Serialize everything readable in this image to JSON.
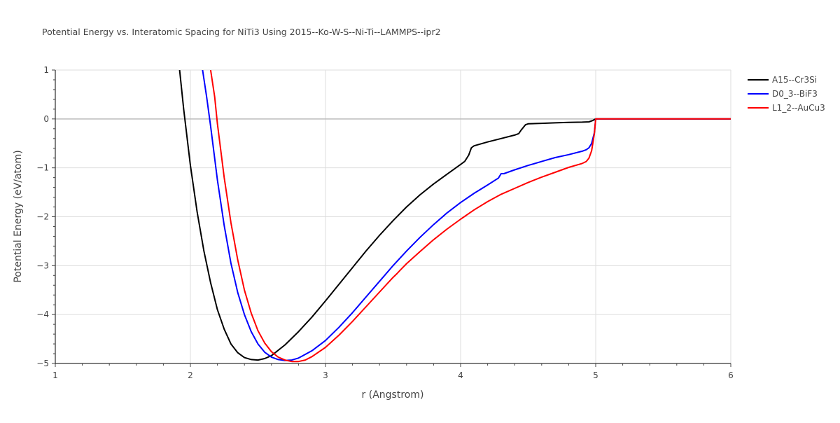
{
  "chart_data": {
    "type": "line",
    "title": "Potential Energy vs. Interatomic Spacing for NiTi3 Using 2015--Ko-W-S--Ni-Ti--LAMMPS--ipr2",
    "xlabel": "r (Angstrom)",
    "ylabel": "Potential Energy (eV/atom)",
    "xlim": [
      1,
      6
    ],
    "ylim": [
      -5,
      1
    ],
    "xticks": [
      1,
      2,
      3,
      4,
      5,
      6
    ],
    "xtick_labels": [
      "1",
      "2",
      "3",
      "4",
      "5",
      "6"
    ],
    "yticks": [
      1,
      0,
      -1,
      -2,
      -3,
      -4,
      -5
    ],
    "ytick_labels": [
      "1",
      "0",
      "−1",
      "−2",
      "−3",
      "−4",
      "−5"
    ],
    "grid": true,
    "legend_position": "top-right",
    "series": [
      {
        "name": "A15--Cr3Si",
        "color": "#000000",
        "x": [
          1.92,
          1.95,
          2.0,
          2.05,
          2.1,
          2.15,
          2.2,
          2.25,
          2.3,
          2.35,
          2.4,
          2.45,
          2.5,
          2.55,
          2.6,
          2.7,
          2.8,
          2.9,
          3.0,
          3.1,
          3.2,
          3.3,
          3.4,
          3.5,
          3.6,
          3.7,
          3.8,
          3.9,
          4.0,
          4.03,
          4.06,
          4.08,
          4.1,
          4.2,
          4.3,
          4.4,
          4.43,
          4.45,
          4.48,
          4.5,
          4.6,
          4.7,
          4.8,
          4.9,
          4.95,
          4.98,
          5.0,
          5.2,
          5.5,
          6.0
        ],
        "y": [
          1.0,
          0.2,
          -0.95,
          -1.9,
          -2.7,
          -3.35,
          -3.9,
          -4.3,
          -4.6,
          -4.78,
          -4.88,
          -4.92,
          -4.93,
          -4.9,
          -4.84,
          -4.62,
          -4.35,
          -4.05,
          -3.72,
          -3.38,
          -3.04,
          -2.7,
          -2.38,
          -2.08,
          -1.8,
          -1.55,
          -1.33,
          -1.13,
          -0.93,
          -0.87,
          -0.74,
          -0.59,
          -0.55,
          -0.47,
          -0.4,
          -0.33,
          -0.3,
          -0.22,
          -0.12,
          -0.1,
          -0.09,
          -0.08,
          -0.07,
          -0.065,
          -0.06,
          -0.03,
          0.0,
          0.0,
          0.0,
          0.0
        ]
      },
      {
        "name": "D0_3--BiF3",
        "color": "#0000ff",
        "x": [
          2.09,
          2.12,
          2.15,
          2.2,
          2.25,
          2.3,
          2.35,
          2.4,
          2.45,
          2.5,
          2.55,
          2.6,
          2.65,
          2.7,
          2.75,
          2.8,
          2.9,
          3.0,
          3.1,
          3.2,
          3.3,
          3.4,
          3.5,
          3.6,
          3.7,
          3.8,
          3.9,
          4.0,
          4.1,
          4.2,
          4.28,
          4.3,
          4.32,
          4.4,
          4.5,
          4.6,
          4.7,
          4.8,
          4.9,
          4.93,
          4.95,
          4.97,
          4.99,
          5.0,
          5.2,
          5.5,
          6.0
        ],
        "y": [
          1.0,
          0.45,
          -0.15,
          -1.25,
          -2.18,
          -2.95,
          -3.55,
          -4.0,
          -4.35,
          -4.6,
          -4.77,
          -4.87,
          -4.92,
          -4.94,
          -4.93,
          -4.89,
          -4.74,
          -4.53,
          -4.26,
          -3.96,
          -3.64,
          -3.32,
          -3.0,
          -2.7,
          -2.42,
          -2.16,
          -1.92,
          -1.71,
          -1.52,
          -1.35,
          -1.21,
          -1.12,
          -1.12,
          -1.04,
          -0.95,
          -0.87,
          -0.79,
          -0.73,
          -0.66,
          -0.63,
          -0.59,
          -0.5,
          -0.28,
          0.0,
          0.0,
          0.0,
          0.0
        ]
      },
      {
        "name": "L1_2--AuCu3",
        "color": "#ff0000",
        "x": [
          2.15,
          2.18,
          2.2,
          2.25,
          2.3,
          2.35,
          2.4,
          2.45,
          2.5,
          2.55,
          2.6,
          2.65,
          2.7,
          2.75,
          2.8,
          2.85,
          2.9,
          3.0,
          3.1,
          3.2,
          3.3,
          3.4,
          3.5,
          3.53,
          3.55,
          3.6,
          3.7,
          3.8,
          3.9,
          4.0,
          4.1,
          4.2,
          4.3,
          4.4,
          4.5,
          4.6,
          4.7,
          4.8,
          4.9,
          4.93,
          4.95,
          4.97,
          4.99,
          5.0,
          5.2,
          5.5,
          6.0
        ],
        "y": [
          1.0,
          0.45,
          -0.1,
          -1.2,
          -2.12,
          -2.88,
          -3.5,
          -3.97,
          -4.33,
          -4.58,
          -4.76,
          -4.87,
          -4.93,
          -4.96,
          -4.96,
          -4.93,
          -4.86,
          -4.67,
          -4.42,
          -4.14,
          -3.84,
          -3.54,
          -3.24,
          -3.16,
          -3.1,
          -2.96,
          -2.71,
          -2.47,
          -2.25,
          -2.05,
          -1.86,
          -1.69,
          -1.54,
          -1.42,
          -1.3,
          -1.19,
          -1.09,
          -0.99,
          -0.91,
          -0.87,
          -0.8,
          -0.65,
          -0.3,
          0.0,
          0.0,
          0.0,
          0.0
        ]
      }
    ]
  }
}
